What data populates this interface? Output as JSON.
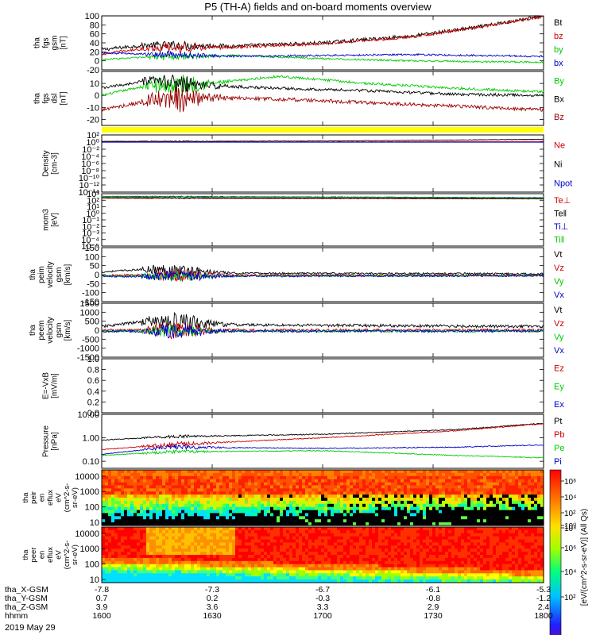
{
  "chart_data": {
    "type": "line",
    "title": "P5 (TH-A) fields and on-board moments overview",
    "date": "2019 May 29",
    "time_axis": {
      "ticks_hhmm": [
        "1600",
        "1630",
        "1700",
        "1730",
        "1800"
      ],
      "ephemeris": [
        {
          "label": "tha_X-GSM",
          "values": [
            "-7.8",
            "-7.3",
            "-6.7",
            "-6.1",
            "-5.3"
          ]
        },
        {
          "label": "tha_Y-GSM",
          "values": [
            "0.7",
            "0.2",
            "-0.3",
            "-0.8",
            "-1.2"
          ]
        },
        {
          "label": "tha_Z-GSM",
          "values": [
            "3.9",
            "3.6",
            "3.3",
            "2.9",
            "2.4"
          ]
        },
        {
          "label": "hhmm",
          "values": [
            "1600",
            "1630",
            "1700",
            "1730",
            "1800"
          ]
        }
      ]
    },
    "panels": [
      {
        "id": "fgs-mag",
        "ylabel": [
          "tha",
          "fgs",
          "gsm",
          "[nT]"
        ],
        "ylim": [
          -20,
          100
        ],
        "yticks": [
          {
            "v": 100,
            "t": "100"
          },
          {
            "v": 80,
            "t": "80"
          },
          {
            "v": 60,
            "t": "60"
          },
          {
            "v": 40,
            "t": "40"
          },
          {
            "v": 20,
            "t": "20"
          },
          {
            "v": 0,
            "t": "0"
          },
          {
            "v": -20,
            "t": "-20"
          }
        ],
        "series": [
          {
            "name": "Bt",
            "color": "#000000",
            "x": [
              0,
              0.1,
              0.3,
              0.5,
              0.7,
              0.85,
              1
            ],
            "y": [
              25,
              35,
              33,
              40,
              55,
              75,
              100
            ],
            "noise": 4,
            "stormNoise": 6
          },
          {
            "name": "bz",
            "color": "#cc0000",
            "x": [
              0,
              0.1,
              0.3,
              0.5,
              0.7,
              0.85,
              1
            ],
            "y": [
              15,
              28,
              30,
              38,
              53,
              74,
              99
            ],
            "noise": 3,
            "stormNoise": 8
          },
          {
            "name": "by",
            "color": "#00cc00",
            "x": [
              0,
              0.1,
              0.3,
              0.5,
              0.7,
              0.85,
              1
            ],
            "y": [
              3,
              8,
              12,
              5,
              0,
              -2,
              -3
            ],
            "noise": 2,
            "stormNoise": 5
          },
          {
            "name": "bx",
            "color": "#0000cc",
            "x": [
              0,
              0.1,
              0.3,
              0.5,
              0.7,
              0.85,
              1
            ],
            "y": [
              18,
              15,
              10,
              12,
              14,
              12,
              10
            ],
            "noise": 2,
            "stormNoise": 6
          }
        ]
      },
      {
        "id": "fgs-dsl",
        "ylabel": [
          "tha",
          "fgs",
          "dsl",
          "[nT]"
        ],
        "ylim": [
          -25,
          20
        ],
        "yticks": [
          {
            "v": 20,
            "t": ""
          },
          {
            "v": 10,
            "t": "10"
          },
          {
            "v": 0,
            "t": "0"
          },
          {
            "v": -10,
            "t": "-10"
          },
          {
            "v": -20,
            "t": "-20"
          }
        ],
        "series": [
          {
            "name": "By",
            "color": "#00cc00",
            "x": [
              0,
              0.1,
              0.25,
              0.4,
              0.6,
              0.8,
              1
            ],
            "y": [
              0,
              8,
              10,
              16,
              10,
              6,
              3
            ],
            "noise": 1,
            "stormNoise": 8
          },
          {
            "name": "Bx",
            "color": "#000000",
            "x": [
              0,
              0.1,
              0.25,
              0.4,
              0.6,
              0.8,
              1
            ],
            "y": [
              6,
              12,
              8,
              6,
              4,
              1,
              0
            ],
            "noise": 1.2,
            "stormNoise": 6
          },
          {
            "name": "Bz",
            "color": "#990000",
            "x": [
              0,
              0.1,
              0.25,
              0.4,
              0.6,
              0.8,
              1
            ],
            "y": [
              -12,
              -5,
              -2,
              -3,
              -6,
              -9,
              -12
            ],
            "noise": 1.5,
            "stormNoise": 10
          }
        ]
      },
      {
        "id": "density",
        "ylabel": [
          "Density",
          "[cm-3]"
        ],
        "log": true,
        "ylim": [
          -14,
          2
        ],
        "yticks": [
          {
            "v": 2,
            "t": "10²"
          },
          {
            "v": 0,
            "t": "10⁰"
          },
          {
            "v": -2,
            "t": "10⁻²"
          },
          {
            "v": -4,
            "t": "10⁻⁴"
          },
          {
            "v": -6,
            "t": "10⁻⁶"
          },
          {
            "v": -8,
            "t": "10⁻⁸"
          },
          {
            "v": -10,
            "t": "10⁻¹⁰"
          },
          {
            "v": -12,
            "t": "10⁻¹²"
          },
          {
            "v": -14,
            "t": "10⁻¹⁴"
          }
        ],
        "series": [
          {
            "name": "Ne",
            "color": "#cc0000",
            "x": [
              0,
              0.5,
              1
            ],
            "y": [
              0.1,
              0.05,
              0.2
            ],
            "noise": 0.05,
            "stormNoise": 0.1
          },
          {
            "name": "Ni",
            "color": "#000000",
            "x": [
              0,
              0.5,
              1
            ],
            "y": [
              0.2,
              0.3,
              0.8
            ],
            "noise": 0.05,
            "stormNoise": 0.1
          },
          {
            "name": "Npot",
            "color": "#0000cc",
            "x": [
              0,
              1
            ],
            "y": [
              -0.05,
              -0.05
            ],
            "noise": 0,
            "stormNoise": 0
          }
        ]
      },
      {
        "id": "temperature",
        "ylabel": [
          "mom3",
          "[eV]"
        ],
        "log": true,
        "ylim": [
          -5,
          3
        ],
        "yticks": [
          {
            "v": 3,
            "t": "10³"
          },
          {
            "v": 2,
            "t": "10²"
          },
          {
            "v": 1,
            "t": "10¹"
          },
          {
            "v": 0,
            "t": "10⁰"
          },
          {
            "v": -1,
            "t": "10⁻¹"
          },
          {
            "v": -2,
            "t": "10⁻²"
          },
          {
            "v": -3,
            "t": "10⁻³"
          },
          {
            "v": -4,
            "t": "10⁻⁴"
          },
          {
            "v": -5,
            "t": "10⁻⁵"
          }
        ],
        "series": [
          {
            "name": "Te⊥",
            "color": "#cc0000",
            "x": [
              0,
              1
            ],
            "y": [
              2.3,
              2.2
            ],
            "noise": 0.03,
            "stormNoise": 0.05
          },
          {
            "name": "Te‖",
            "color": "#000000",
            "x": [
              0,
              1
            ],
            "y": [
              2.4,
              2.25
            ],
            "noise": 0.03,
            "stormNoise": 0.05
          },
          {
            "name": "Ti⊥",
            "color": "#0000cc",
            "x": [
              0,
              1
            ],
            "y": [
              2.6,
              2.4
            ],
            "noise": 0.03,
            "stormNoise": 0.05
          },
          {
            "name": "Ti‖",
            "color": "#00cc00",
            "x": [
              0,
              1
            ],
            "y": [
              2.55,
              2.35
            ],
            "noise": 0.03,
            "stormNoise": 0.05
          }
        ]
      },
      {
        "id": "peim-velocity",
        "ylabel": [
          "tha",
          "peim",
          "velocity",
          "gsm",
          "[km/s]"
        ],
        "ylim": [
          -150,
          150
        ],
        "yticks": [
          {
            "v": 150,
            "t": "150"
          },
          {
            "v": 100,
            "t": "100"
          },
          {
            "v": 50,
            "t": "50"
          },
          {
            "v": 0,
            "t": "0"
          },
          {
            "v": -50,
            "t": "-50"
          },
          {
            "v": -100,
            "t": "-100"
          },
          {
            "v": -150,
            "t": "-150"
          }
        ],
        "series": [
          {
            "name": "Vt",
            "color": "#000000",
            "x": [
              0,
              0.1,
              0.3,
              1
            ],
            "y": [
              15,
              30,
              8,
              5
            ],
            "noise": 5,
            "stormNoise": 35
          },
          {
            "name": "Vz",
            "color": "#cc0000",
            "x": [
              0,
              1
            ],
            "y": [
              -3,
              -3
            ],
            "noise": 6,
            "stormNoise": 30
          },
          {
            "name": "Vy",
            "color": "#00cc00",
            "x": [
              0,
              1
            ],
            "y": [
              -8,
              -5
            ],
            "noise": 5,
            "stormNoise": 25
          },
          {
            "name": "Vx",
            "color": "#0000cc",
            "x": [
              0,
              1
            ],
            "y": [
              -10,
              -6
            ],
            "noise": 5,
            "stormNoise": 30
          }
        ]
      },
      {
        "id": "peem-velocity",
        "ylabel": [
          "tha",
          "peem",
          "velocity",
          "gsm",
          "[km/s]"
        ],
        "ylim": [
          -1500,
          1500
        ],
        "yticks": [
          {
            "v": 1500,
            "t": "1500"
          },
          {
            "v": 1000,
            "t": "1000"
          },
          {
            "v": 500,
            "t": "500"
          },
          {
            "v": 0,
            "t": "0"
          },
          {
            "v": -500,
            "t": "-500"
          },
          {
            "v": -1000,
            "t": "-1000"
          },
          {
            "v": -1500,
            "t": "-1500"
          }
        ],
        "series": [
          {
            "name": "Vt",
            "color": "#000000",
            "x": [
              0,
              0.1,
              0.3,
              1
            ],
            "y": [
              200,
              500,
              300,
              200
            ],
            "noise": 80,
            "stormNoise": 500
          },
          {
            "name": "Vz",
            "color": "#cc0000",
            "x": [
              0,
              1
            ],
            "y": [
              0,
              0
            ],
            "noise": 80,
            "stormNoise": 400
          },
          {
            "name": "Vy",
            "color": "#00cc00",
            "x": [
              0,
              1
            ],
            "y": [
              -50,
              -50
            ],
            "noise": 70,
            "stormNoise": 300
          },
          {
            "name": "Vx",
            "color": "#0000cc",
            "x": [
              0,
              1
            ],
            "y": [
              -60,
              -40
            ],
            "noise": 70,
            "stormNoise": 350
          }
        ]
      },
      {
        "id": "efield",
        "ylabel": [
          "E=-VxB",
          "[mV/m]"
        ],
        "ylim": [
          0,
          1
        ],
        "yticks": [
          {
            "v": 1,
            "t": "1.0"
          },
          {
            "v": 0.8,
            "t": "0.8"
          },
          {
            "v": 0.6,
            "t": "0.6"
          },
          {
            "v": 0.4,
            "t": "0.4"
          },
          {
            "v": 0.2,
            "t": "0.2"
          },
          {
            "v": 0,
            "t": "0.0"
          }
        ],
        "series": [
          {
            "name": "Ez",
            "color": "#cc0000",
            "x": [],
            "y": []
          },
          {
            "name": "Ey",
            "color": "#00cc00",
            "x": [],
            "y": []
          },
          {
            "name": "Ex",
            "color": "#0000cc",
            "x": [],
            "y": []
          }
        ]
      },
      {
        "id": "pressure",
        "ylabel": [
          "Pressure",
          "[nPa]"
        ],
        "log": true,
        "ylim": [
          -1.3,
          1
        ],
        "yticks": [
          {
            "v": 1,
            "t": "10.00"
          },
          {
            "v": 0,
            "t": "1.00"
          },
          {
            "v": -1,
            "t": "0.10"
          }
        ],
        "series": [
          {
            "name": "Pt",
            "color": "#000000",
            "x": [
              0,
              0.15,
              0.5,
              0.8,
              1
            ],
            "y": [
              -0.1,
              0.05,
              0.15,
              0.35,
              0.62
            ],
            "noise": 0.02,
            "stormNoise": 0.05
          },
          {
            "name": "Pb",
            "color": "#cc0000",
            "x": [
              0,
              0.15,
              0.5,
              0.8,
              1
            ],
            "y": [
              -0.5,
              -0.3,
              0.0,
              0.3,
              0.6
            ],
            "noise": 0.02,
            "stormNoise": 0.1
          },
          {
            "name": "Pe",
            "color": "#00cc00",
            "x": [
              0,
              0.15,
              0.5,
              0.8,
              1
            ],
            "y": [
              -0.75,
              -0.6,
              -0.55,
              -0.75,
              -0.85
            ],
            "noise": 0.02,
            "stormNoise": 0.06
          },
          {
            "name": "Pi",
            "color": "#0000cc",
            "x": [
              0,
              0.15,
              0.5,
              0.8,
              1
            ],
            "y": [
              -0.7,
              -0.4,
              -0.45,
              -0.4,
              -0.3
            ],
            "noise": 0.02,
            "stormNoise": 0.08
          }
        ]
      }
    ],
    "spectrograms": [
      {
        "id": "peir-eflux",
        "type": "heatmap",
        "ylabel": [
          "tha",
          "peir",
          "en",
          "eflux",
          "eV",
          "(cm^2-s-",
          "sr-eV)"
        ],
        "yticks": [
          {
            "v": 4,
            "t": "10000"
          },
          {
            "v": 3,
            "t": "1000"
          },
          {
            "v": 2,
            "t": "100"
          },
          {
            "v": 1,
            "t": "10"
          }
        ],
        "ylim": [
          0.8,
          4.4
        ],
        "species": "ion"
      },
      {
        "id": "peer-eflux",
        "type": "heatmap",
        "ylabel": [
          "tha",
          "peer",
          "en",
          "eflux",
          "eV",
          "(cm^2-s-",
          "sr-eV)"
        ],
        "yticks": [
          {
            "v": 4,
            "t": "10000"
          },
          {
            "v": 3,
            "t": "1000"
          },
          {
            "v": 2,
            "t": "100"
          },
          {
            "v": 1,
            "t": "10"
          }
        ],
        "ylim": [
          0.8,
          4.4
        ],
        "species": "electron"
      }
    ],
    "colorbar": {
      "label": "[eV/(cm^2-s-sr-eV)] (All Qs)",
      "ticks_top": [
        "10⁶",
        "10⁴",
        "10²",
        "10⁰"
      ],
      "ticks_bottom": [
        "10⁸",
        "10⁶",
        "10⁴",
        "10²"
      ]
    },
    "mode_bar": {
      "color": "#ffff00"
    }
  }
}
